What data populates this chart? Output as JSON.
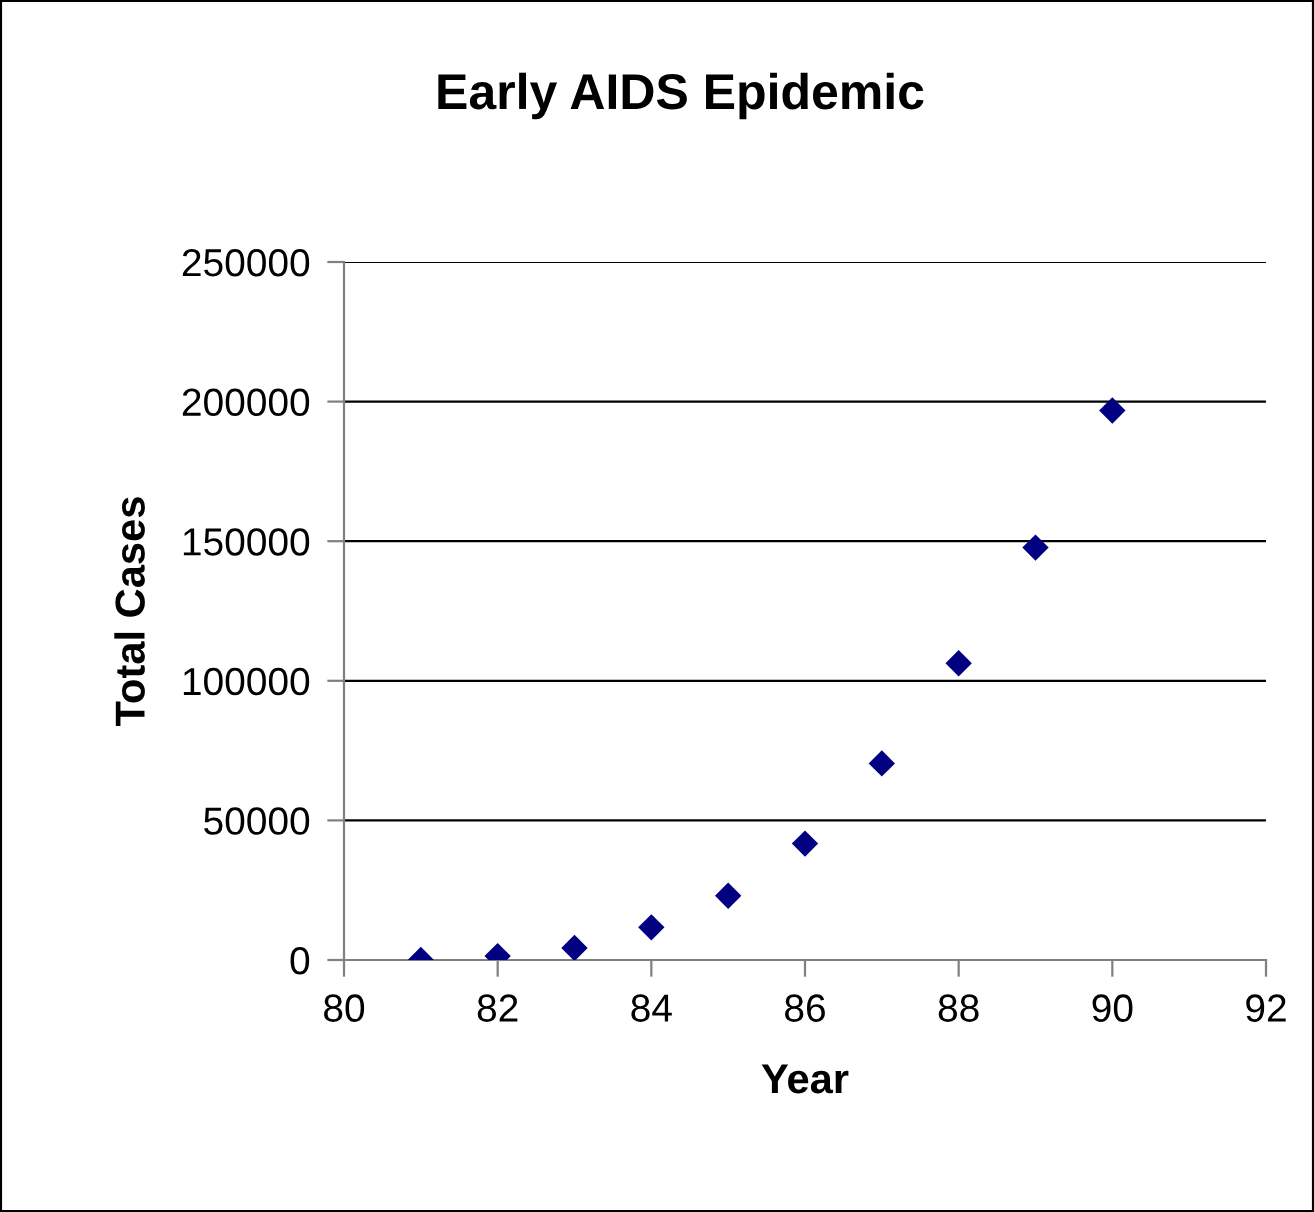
{
  "chart_data": {
    "type": "scatter",
    "title": "Early AIDS Epidemic",
    "xlabel": "Year",
    "ylabel": "Total Cases",
    "x": [
      81,
      82,
      83,
      84,
      85,
      86,
      87,
      88,
      89,
      90
    ],
    "series": [
      {
        "color": "#000080",
        "values": [
          0,
          1400,
          4300,
          11700,
          23000,
          41700,
          70400,
          106300,
          147700,
          196800
        ]
      }
    ],
    "xlim": [
      80,
      92
    ],
    "xticks": [
      80,
      82,
      84,
      86,
      88,
      90,
      92
    ],
    "ylim": [
      0,
      250000
    ],
    "yticks": [
      0,
      50000,
      100000,
      150000,
      200000,
      250000
    ],
    "grid": "y",
    "marker": "diamond"
  }
}
